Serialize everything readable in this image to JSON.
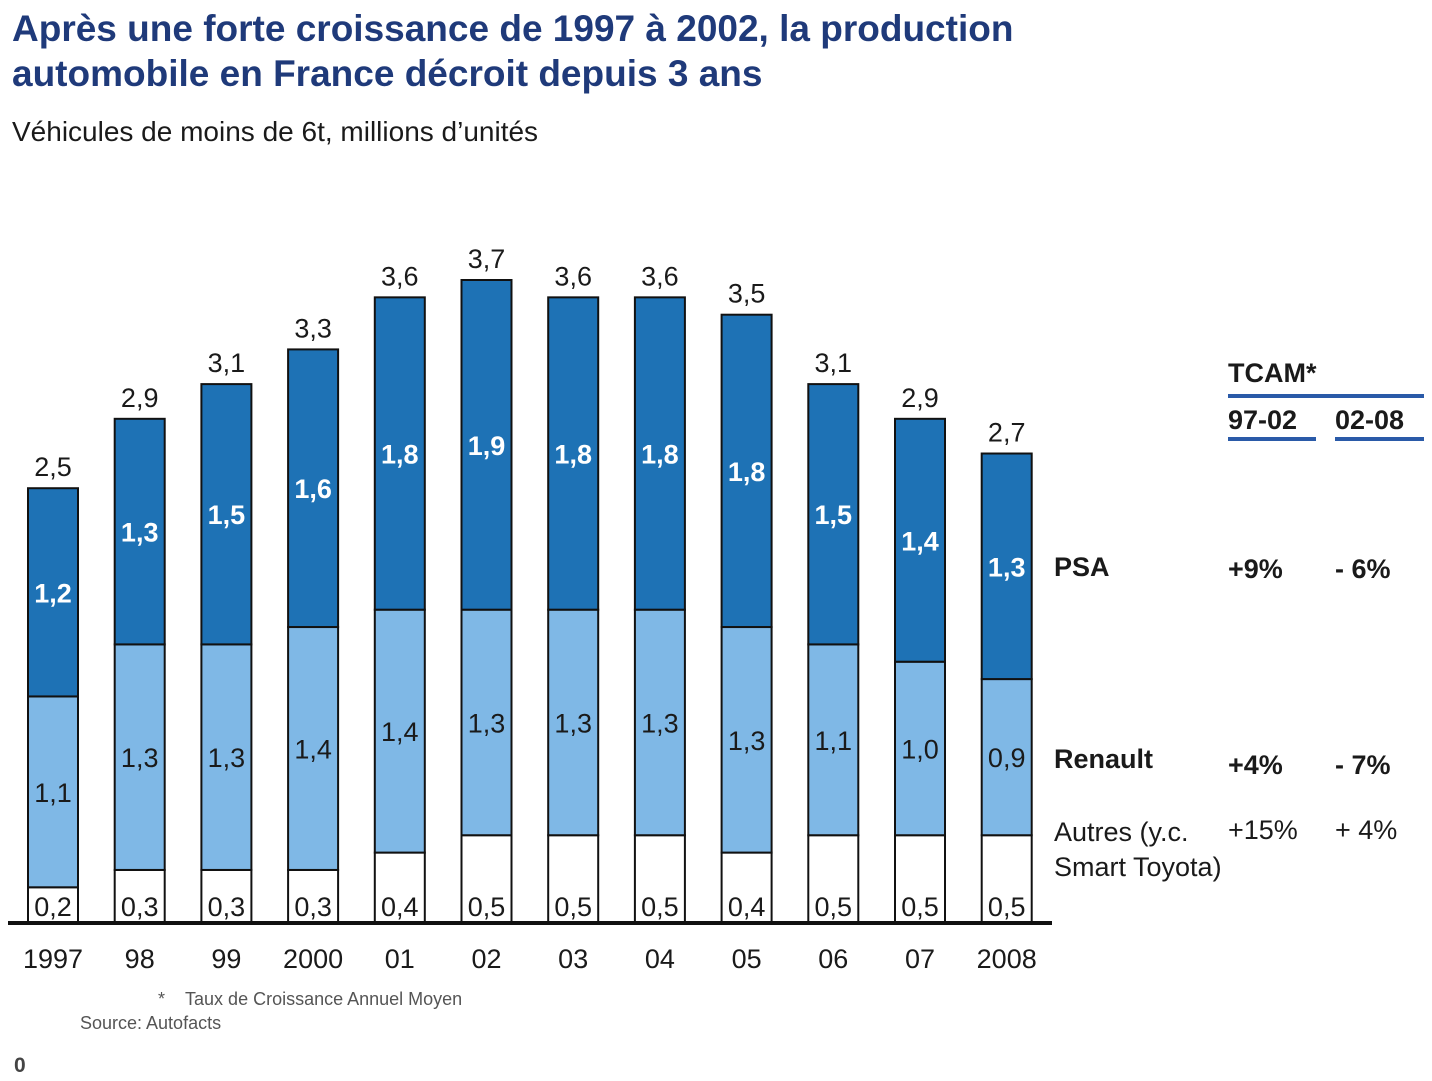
{
  "title": "Après une forte croissance de 1997 à 2002, la production automobile en France décroit depuis 3 ans",
  "subtitle": "Véhicules de moins de 6t, millions d’unités",
  "colors": {
    "psa": "#1e72b5",
    "renault": "#7fb8e6",
    "autres": "#ffffff",
    "rule": "#2a5aa8"
  },
  "legend": {
    "psa": "PSA",
    "renault": "Renault",
    "autres": "Autres (y.c. Smart Toyota)"
  },
  "tcam": {
    "title": "TCAM*",
    "periods": [
      "97-02",
      "02-08"
    ],
    "psa": [
      "+9%",
      "- 6%"
    ],
    "renault": [
      "+4%",
      "- 7%"
    ],
    "autres": [
      "+15%",
      "+ 4%"
    ]
  },
  "footnote": "Taux de Croissance Annuel Moyen",
  "footnote_marker": "*",
  "source": "Source: Autofacts",
  "page_number": "0",
  "chart_data": {
    "type": "bar",
    "stacked": true,
    "categories": [
      "1997",
      "98",
      "99",
      "2000",
      "01",
      "02",
      "03",
      "04",
      "05",
      "06",
      "07",
      "2008"
    ],
    "series": [
      {
        "name": "Autres (y.c. Smart Toyota)",
        "values": [
          0.2,
          0.3,
          0.3,
          0.3,
          0.4,
          0.5,
          0.5,
          0.5,
          0.4,
          0.5,
          0.5,
          0.5
        ],
        "labels": [
          "0,2",
          "0,3",
          "0,3",
          "0,3",
          "0,4",
          "0,5",
          "0,5",
          "0,5",
          "0,4",
          "0,5",
          "0,5",
          "0,5"
        ]
      },
      {
        "name": "Renault",
        "values": [
          1.1,
          1.3,
          1.3,
          1.4,
          1.4,
          1.3,
          1.3,
          1.3,
          1.3,
          1.1,
          1.0,
          0.9
        ],
        "labels": [
          "1,1",
          "1,3",
          "1,3",
          "1,4",
          "1,4",
          "1,3",
          "1,3",
          "1,3",
          "1,3",
          "1,1",
          "1,0",
          "0,9"
        ]
      },
      {
        "name": "PSA",
        "values": [
          1.2,
          1.3,
          1.5,
          1.6,
          1.8,
          1.9,
          1.8,
          1.8,
          1.8,
          1.5,
          1.4,
          1.3
        ],
        "labels": [
          "1,2",
          "1,3",
          "1,5",
          "1,6",
          "1,8",
          "1,9",
          "1,8",
          "1,8",
          "1,8",
          "1,5",
          "1,4",
          "1,3"
        ]
      }
    ],
    "totals": [
      2.5,
      2.9,
      3.1,
      3.3,
      3.6,
      3.7,
      3.6,
      3.6,
      3.5,
      3.1,
      2.9,
      2.7
    ],
    "total_labels": [
      "2,5",
      "2,9",
      "3,1",
      "3,3",
      "3,6",
      "3,7",
      "3,6",
      "3,6",
      "3,5",
      "3,1",
      "2,9",
      "2,7"
    ],
    "ylim": [
      0,
      3.7
    ]
  }
}
